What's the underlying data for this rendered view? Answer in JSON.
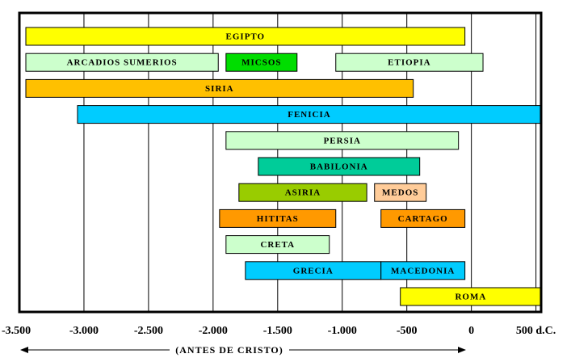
{
  "chart_data": {
    "type": "timeline",
    "annotation": "(ANTES DE CRISTO)",
    "xlim": [
      -3500,
      540
    ],
    "xticks": [
      {
        "value": -3500,
        "label": "-3.500"
      },
      {
        "value": -3000,
        "label": "-3.000"
      },
      {
        "value": -2500,
        "label": "-2.500"
      },
      {
        "value": -2000,
        "label": "-2.000"
      },
      {
        "value": -1500,
        "label": "-1.500"
      },
      {
        "value": -1000,
        "label": "-1.000"
      },
      -500,
      0,
      {
        "value": 500,
        "label": "500 d.C."
      }
    ],
    "grid": true,
    "bars": [
      {
        "label": "EGIPTO",
        "start": -3450,
        "end": -50,
        "row": 0,
        "color": "#ffff00"
      },
      {
        "label": "ARCADIOS  SUMERIOS",
        "start": -3450,
        "end": -1960,
        "row": 1,
        "color": "#ccffcc"
      },
      {
        "label": "MICSOS",
        "start": -1900,
        "end": -1350,
        "row": 1,
        "color": "#00dd00"
      },
      {
        "label": "ETIOPIA",
        "start": -1050,
        "end": 90,
        "row": 1,
        "color": "#ccffcc"
      },
      {
        "label": "SIRIA",
        "start": -3450,
        "end": -450,
        "row": 2,
        "color": "#ffc000"
      },
      {
        "label": "FENICIA",
        "start": -3050,
        "end": 540,
        "row": 3,
        "color": "#00ccff"
      },
      {
        "label": "PERSIA",
        "start": -1900,
        "end": -100,
        "row": 4,
        "color": "#ccffcc"
      },
      {
        "label": "BABILONIA",
        "start": -1650,
        "end": -400,
        "row": 5,
        "color": "#00cc99"
      },
      {
        "label": "ASIRIA",
        "start": -1800,
        "end": -810,
        "row": 6,
        "color": "#99cc00"
      },
      {
        "label": "MEDOS",
        "start": -750,
        "end": -350,
        "row": 6,
        "color": "#ffcc99"
      },
      {
        "label": "HITITAS",
        "start": -1950,
        "end": -1050,
        "row": 7,
        "color": "#ff9900"
      },
      {
        "label": "CARTAGO",
        "start": -700,
        "end": -50,
        "row": 7,
        "color": "#ff9900"
      },
      {
        "label": "CRETA",
        "start": -1900,
        "end": -1100,
        "row": 8,
        "color": "#ccffcc"
      },
      {
        "label": "GRECIA",
        "start": -1750,
        "end": -700,
        "row": 9,
        "color": "#00ccff"
      },
      {
        "label": "MACEDONIA",
        "start": -700,
        "end": -50,
        "row": 9,
        "color": "#00ccff"
      },
      {
        "label": "ROMA",
        "start": -550,
        "end": 540,
        "row": 10,
        "color": "#ffff00"
      }
    ]
  }
}
